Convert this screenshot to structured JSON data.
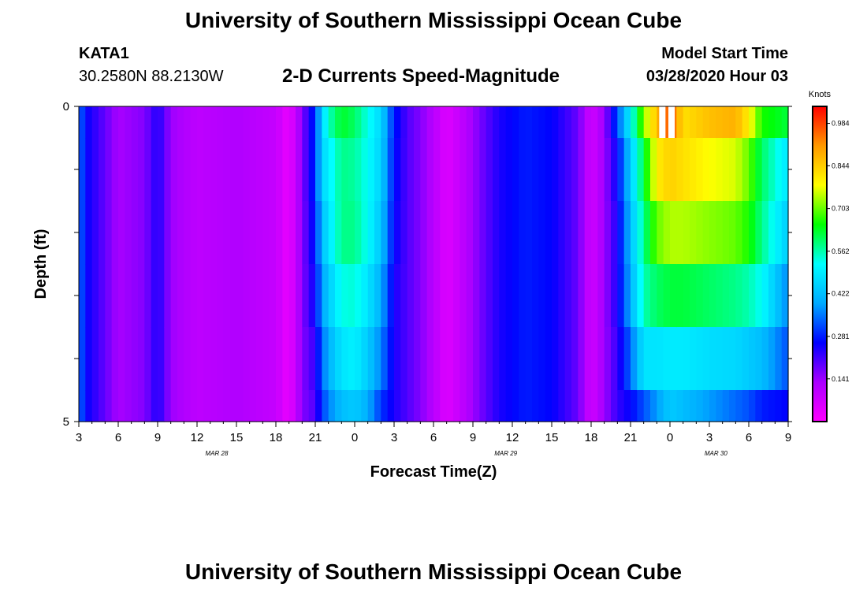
{
  "page": {
    "main_title": "University of Southern Mississippi Ocean Cube",
    "footer_title": "University of Southern Mississippi Ocean Cube",
    "station_id": "KATA1",
    "coordinates": "30.2580N 88.2130W",
    "subtitle": "2-D Currents Speed-Magnitude",
    "start_label": "Model Start Time",
    "start_value": "03/28/2020 Hour 03"
  },
  "colors": {
    "stops": [
      "#ff00ff",
      "#aa00ff",
      "#0000ff",
      "#00aaff",
      "#00ffff",
      "#00ff00",
      "#ffff00",
      "#ff9900",
      "#ff0000"
    ]
  },
  "chart_data": {
    "type": "heatmap",
    "title": "2-D Currents Speed-Magnitude",
    "xlabel": "Forecast Time(Z)",
    "ylabel": "Depth (ft)",
    "colorbar_label": "Knots",
    "colorbar_ticks": [
      "0.984",
      "0.844",
      "0.703",
      "0.562",
      "0.422",
      "0.281",
      "0.141"
    ],
    "colorbar_tick_values": [
      0.984,
      0.844,
      0.703,
      0.562,
      0.422,
      0.281,
      0.141
    ],
    "color_range": [
      0,
      1.04
    ],
    "x_tick_labels": [
      "3",
      "6",
      "9",
      "12",
      "15",
      "18",
      "21",
      "0",
      "3",
      "6",
      "9",
      "12",
      "15",
      "18",
      "21",
      "0",
      "3",
      "6",
      "9"
    ],
    "x_tick_hours": [
      3,
      6,
      9,
      12,
      15,
      18,
      21,
      24,
      27,
      30,
      33,
      36,
      39,
      42,
      45,
      48,
      51,
      54,
      57
    ],
    "x_range_hours": [
      3,
      57
    ],
    "date_labels": [
      "MAR 28",
      "MAR 29",
      "MAR 30"
    ],
    "date_label_hours": [
      13.5,
      35.5,
      51.5
    ],
    "y_tick_labels": [
      "0",
      "5"
    ],
    "y_range": [
      0,
      5
    ],
    "depth_bins": [
      [
        0,
        0.5
      ],
      [
        0.5,
        1.5
      ],
      [
        1.5,
        2.5
      ],
      [
        2.5,
        3.5
      ],
      [
        3.5,
        4.5
      ],
      [
        4.5,
        5.0
      ]
    ],
    "key_points": [
      [
        3,
        0.36,
        0.36,
        0.36,
        0.36,
        0.36,
        0.36
      ],
      [
        3.5,
        0.26,
        0.26,
        0.26,
        0.26,
        0.26,
        0.26
      ],
      [
        4.5,
        0.21,
        0.21,
        0.21,
        0.21,
        0.21,
        0.21
      ],
      [
        6,
        0.13,
        0.13,
        0.13,
        0.13,
        0.13,
        0.13
      ],
      [
        8,
        0.16,
        0.16,
        0.16,
        0.16,
        0.16,
        0.16
      ],
      [
        9,
        0.24,
        0.24,
        0.24,
        0.24,
        0.24,
        0.24
      ],
      [
        10,
        0.14,
        0.14,
        0.14,
        0.14,
        0.14,
        0.14
      ],
      [
        12,
        0.1,
        0.1,
        0.1,
        0.1,
        0.1,
        0.1
      ],
      [
        15,
        0.12,
        0.12,
        0.12,
        0.12,
        0.12,
        0.12
      ],
      [
        18,
        0.09,
        0.09,
        0.09,
        0.09,
        0.09,
        0.09
      ],
      [
        19,
        0.03,
        0.03,
        0.03,
        0.03,
        0.03,
        0.03
      ],
      [
        20,
        0.16,
        0.16,
        0.16,
        0.16,
        0.16,
        0.16
      ],
      [
        21,
        0.3,
        0.3,
        0.28,
        0.26,
        0.22,
        0.2
      ],
      [
        21.5,
        0.45,
        0.45,
        0.42,
        0.38,
        0.34,
        0.3
      ],
      [
        22,
        0.55,
        0.5,
        0.48,
        0.44,
        0.4,
        0.36
      ],
      [
        23,
        0.63,
        0.58,
        0.58,
        0.53,
        0.48,
        0.42
      ],
      [
        24,
        0.6,
        0.57,
        0.58,
        0.54,
        0.5,
        0.44
      ],
      [
        25,
        0.53,
        0.52,
        0.52,
        0.48,
        0.44,
        0.4
      ],
      [
        26,
        0.46,
        0.45,
        0.43,
        0.4,
        0.36,
        0.3
      ],
      [
        27,
        0.28,
        0.27,
        0.26,
        0.24,
        0.24,
        0.24
      ],
      [
        28,
        0.2,
        0.2,
        0.2,
        0.2,
        0.2,
        0.2
      ],
      [
        29,
        0.16,
        0.16,
        0.16,
        0.16,
        0.16,
        0.16
      ],
      [
        30,
        0.11,
        0.11,
        0.11,
        0.11,
        0.11,
        0.11
      ],
      [
        31,
        0.05,
        0.05,
        0.05,
        0.05,
        0.05,
        0.05
      ],
      [
        32,
        0.09,
        0.09,
        0.09,
        0.09,
        0.09,
        0.09
      ],
      [
        33,
        0.14,
        0.14,
        0.14,
        0.14,
        0.14,
        0.14
      ],
      [
        35,
        0.24,
        0.24,
        0.24,
        0.24,
        0.24,
        0.24
      ],
      [
        37,
        0.28,
        0.28,
        0.28,
        0.28,
        0.28,
        0.28
      ],
      [
        39,
        0.26,
        0.26,
        0.26,
        0.26,
        0.26,
        0.26
      ],
      [
        41,
        0.18,
        0.18,
        0.18,
        0.18,
        0.18,
        0.18
      ],
      [
        42,
        0.07,
        0.07,
        0.07,
        0.07,
        0.07,
        0.07
      ],
      [
        43,
        0.14,
        0.14,
        0.14,
        0.14,
        0.14,
        0.14
      ],
      [
        44,
        0.32,
        0.26,
        0.24,
        0.24,
        0.22,
        0.22
      ],
      [
        45,
        0.5,
        0.44,
        0.42,
        0.4,
        0.34,
        0.26
      ],
      [
        46,
        0.72,
        0.62,
        0.58,
        0.56,
        0.48,
        0.32
      ],
      [
        47,
        0.86,
        0.8,
        0.7,
        0.6,
        0.48,
        0.38
      ],
      [
        48,
        0.98,
        0.84,
        0.74,
        0.62,
        0.49,
        0.44
      ],
      [
        49,
        0.82,
        0.82,
        0.74,
        0.62,
        0.49,
        0.42
      ],
      [
        51,
        0.86,
        0.78,
        0.72,
        0.6,
        0.47,
        0.38
      ],
      [
        53,
        0.88,
        0.76,
        0.7,
        0.58,
        0.46,
        0.34
      ],
      [
        54,
        0.8,
        0.7,
        0.66,
        0.56,
        0.44,
        0.32
      ],
      [
        55,
        0.66,
        0.6,
        0.58,
        0.52,
        0.42,
        0.28
      ],
      [
        57,
        0.62,
        0.48,
        0.44,
        0.36,
        0.32,
        0.26
      ]
    ],
    "peak_marks": [
      [
        47.3,
        0.99
      ],
      [
        48.0,
        0.99
      ]
    ]
  }
}
